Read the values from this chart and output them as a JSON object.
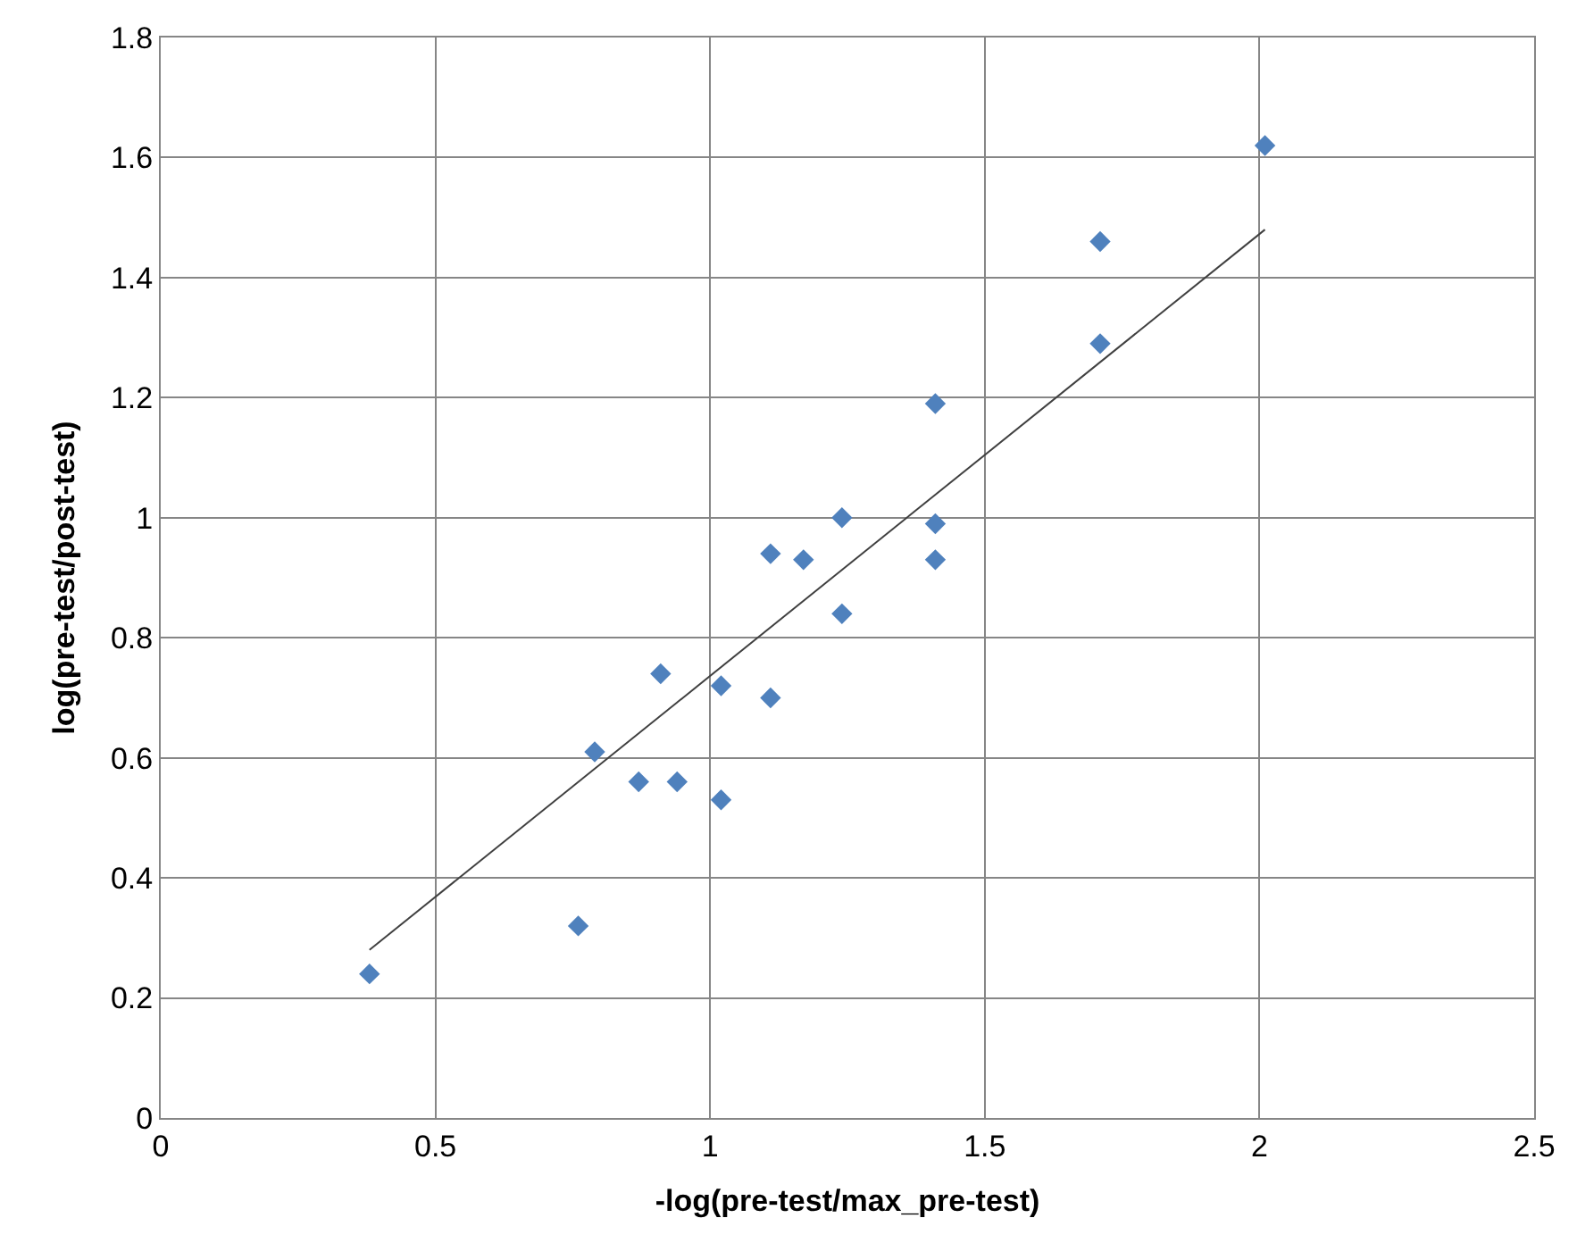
{
  "chart_data": {
    "type": "scatter",
    "xlabel": "-log(pre-test/max_pre-test)",
    "ylabel": "log(pre-test/post-test)",
    "xlim": [
      0,
      2.5
    ],
    "xticks": [
      0,
      0.5,
      1,
      1.5,
      2,
      2.5
    ],
    "ylim": [
      0,
      1.8
    ],
    "yticks": [
      0,
      0.2,
      0.4,
      0.6,
      0.8,
      1,
      1.2,
      1.4,
      1.6,
      1.8
    ],
    "grid": true,
    "marker": "diamond",
    "series": [
      {
        "color": "#4f81bd",
        "x": [
          0.38,
          0.76,
          0.79,
          0.87,
          0.91,
          0.94,
          1.02,
          1.02,
          1.11,
          1.11,
          1.17,
          1.24,
          1.24,
          1.41,
          1.41,
          1.41,
          1.71,
          1.71,
          2.01
        ],
        "values": [
          0.24,
          0.32,
          0.61,
          0.56,
          0.74,
          0.56,
          0.72,
          0.53,
          0.7,
          0.94,
          0.93,
          1.0,
          0.84,
          1.19,
          0.99,
          0.93,
          1.46,
          1.29,
          1.62
        ]
      },
      {
        "type": "line",
        "color": "#404040",
        "marker": "none",
        "x": [
          0.38,
          2.01
        ],
        "values": [
          0.28,
          1.48
        ]
      }
    ]
  }
}
